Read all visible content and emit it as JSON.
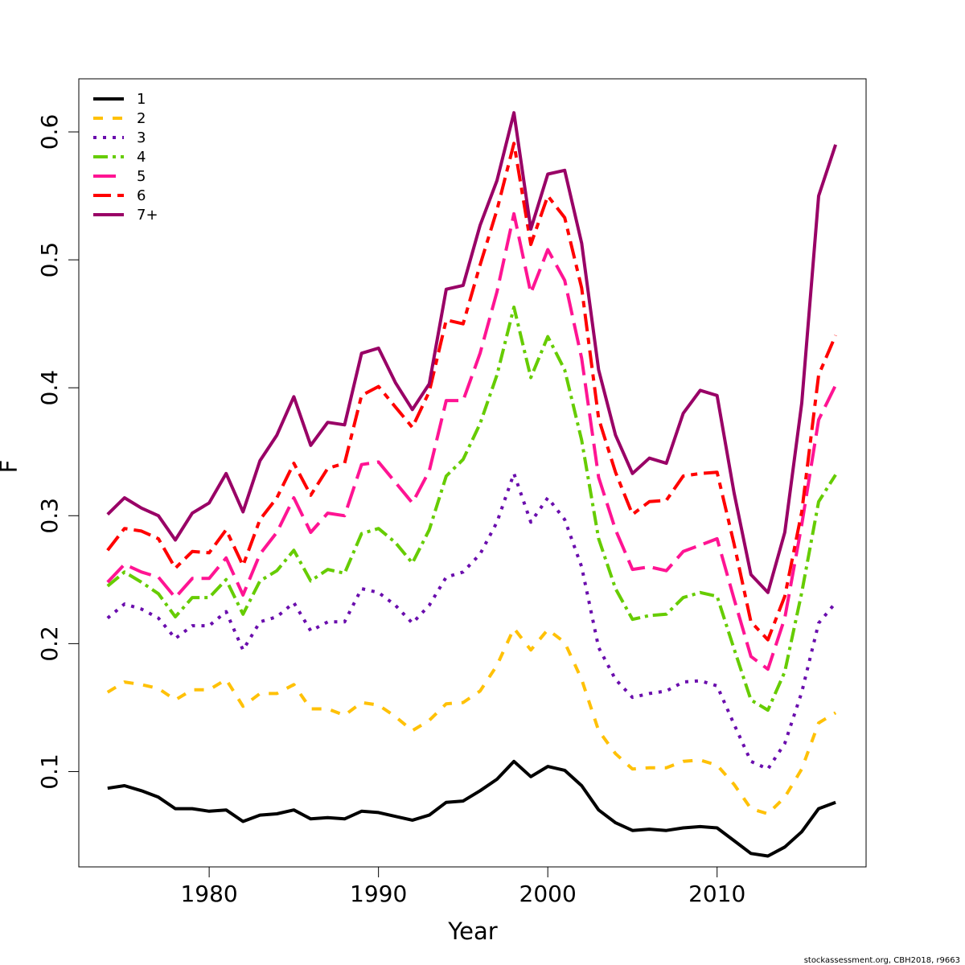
{
  "chart_data": {
    "type": "line",
    "xlabel": "Year",
    "ylabel": "F",
    "xlim": [
      1972.3,
      2018.8
    ],
    "ylim": [
      0.0255,
      0.6415
    ],
    "x_ticks": [
      1980,
      1990,
      2000,
      2010
    ],
    "y_ticks": [
      0.1,
      0.2,
      0.3,
      0.4,
      0.5,
      0.6
    ],
    "y_tick_labels": [
      "0.1",
      "0.2",
      "0.3",
      "0.4",
      "0.5",
      "0.6"
    ],
    "legend_position": "top-left",
    "x": [
      1974,
      1975,
      1976,
      1977,
      1978,
      1979,
      1980,
      1981,
      1982,
      1983,
      1984,
      1985,
      1986,
      1987,
      1988,
      1989,
      1990,
      1991,
      1992,
      1993,
      1994,
      1995,
      1996,
      1997,
      1998,
      1999,
      2000,
      2001,
      2002,
      2003,
      2004,
      2005,
      2006,
      2007,
      2008,
      2009,
      2010,
      2011,
      2012,
      2013,
      2014,
      2015,
      2016,
      2017
    ],
    "series": [
      {
        "name": "1",
        "color": "#000000",
        "dash": "",
        "values": [
          0.087,
          0.089,
          0.085,
          0.08,
          0.071,
          0.071,
          0.069,
          0.07,
          0.061,
          0.066,
          0.067,
          0.07,
          0.063,
          0.064,
          0.063,
          0.069,
          0.068,
          0.065,
          0.062,
          0.066,
          0.076,
          0.077,
          0.085,
          0.094,
          0.108,
          0.096,
          0.104,
          0.101,
          0.089,
          0.07,
          0.06,
          0.054,
          0.055,
          0.054,
          0.056,
          0.057,
          0.056,
          0.046,
          0.036,
          0.034,
          0.041,
          0.053,
          0.071,
          0.076
        ]
      },
      {
        "name": "2",
        "color": "#FFC107",
        "dash": "12 12",
        "values": [
          0.162,
          0.17,
          0.168,
          0.165,
          0.156,
          0.164,
          0.164,
          0.172,
          0.151,
          0.161,
          0.161,
          0.168,
          0.149,
          0.149,
          0.144,
          0.154,
          0.152,
          0.143,
          0.132,
          0.14,
          0.153,
          0.154,
          0.163,
          0.183,
          0.212,
          0.195,
          0.211,
          0.201,
          0.172,
          0.132,
          0.114,
          0.102,
          0.103,
          0.103,
          0.108,
          0.109,
          0.105,
          0.09,
          0.071,
          0.067,
          0.08,
          0.102,
          0.138,
          0.146
        ]
      },
      {
        "name": "3",
        "color": "#6A0DAD",
        "dash": "4 8",
        "values": [
          0.22,
          0.231,
          0.227,
          0.22,
          0.204,
          0.214,
          0.214,
          0.225,
          0.195,
          0.217,
          0.221,
          0.232,
          0.21,
          0.217,
          0.217,
          0.243,
          0.24,
          0.23,
          0.216,
          0.23,
          0.252,
          0.256,
          0.27,
          0.295,
          0.333,
          0.295,
          0.314,
          0.297,
          0.26,
          0.197,
          0.172,
          0.158,
          0.161,
          0.163,
          0.17,
          0.171,
          0.167,
          0.137,
          0.108,
          0.102,
          0.122,
          0.162,
          0.216,
          0.232
        ]
      },
      {
        "name": "4",
        "color": "#66CC00",
        "dash": "18 6 4 6",
        "values": [
          0.245,
          0.256,
          0.248,
          0.239,
          0.221,
          0.236,
          0.236,
          0.25,
          0.223,
          0.249,
          0.257,
          0.273,
          0.249,
          0.258,
          0.255,
          0.286,
          0.29,
          0.279,
          0.263,
          0.289,
          0.331,
          0.344,
          0.372,
          0.41,
          0.463,
          0.408,
          0.44,
          0.414,
          0.359,
          0.282,
          0.243,
          0.219,
          0.222,
          0.223,
          0.236,
          0.24,
          0.237,
          0.196,
          0.156,
          0.148,
          0.178,
          0.24,
          0.311,
          0.332
        ]
      },
      {
        "name": "5",
        "color": "#FF1493",
        "dash": "28 10",
        "values": [
          0.248,
          0.262,
          0.256,
          0.252,
          0.236,
          0.251,
          0.251,
          0.267,
          0.238,
          0.27,
          0.287,
          0.314,
          0.287,
          0.302,
          0.3,
          0.34,
          0.342,
          0.326,
          0.31,
          0.335,
          0.39,
          0.39,
          0.427,
          0.475,
          0.536,
          0.474,
          0.508,
          0.484,
          0.423,
          0.33,
          0.289,
          0.258,
          0.26,
          0.257,
          0.272,
          0.277,
          0.282,
          0.235,
          0.19,
          0.18,
          0.22,
          0.293,
          0.375,
          0.402
        ]
      },
      {
        "name": "6",
        "color": "#FF0000",
        "dash": "22 8 8 8",
        "values": [
          0.273,
          0.29,
          0.288,
          0.282,
          0.259,
          0.272,
          0.271,
          0.289,
          0.261,
          0.297,
          0.314,
          0.341,
          0.316,
          0.337,
          0.341,
          0.394,
          0.401,
          0.385,
          0.369,
          0.397,
          0.453,
          0.45,
          0.496,
          0.539,
          0.591,
          0.512,
          0.55,
          0.533,
          0.478,
          0.376,
          0.334,
          0.301,
          0.311,
          0.312,
          0.331,
          0.333,
          0.334,
          0.278,
          0.217,
          0.203,
          0.237,
          0.303,
          0.41,
          0.441
        ]
      },
      {
        "name": "7+",
        "color": "#990066",
        "dash": "",
        "values": [
          0.301,
          0.314,
          0.306,
          0.3,
          0.281,
          0.302,
          0.31,
          0.333,
          0.303,
          0.343,
          0.363,
          0.393,
          0.355,
          0.373,
          0.371,
          0.427,
          0.431,
          0.404,
          0.383,
          0.403,
          0.477,
          0.48,
          0.527,
          0.562,
          0.615,
          0.524,
          0.567,
          0.57,
          0.513,
          0.414,
          0.363,
          0.333,
          0.345,
          0.341,
          0.38,
          0.398,
          0.394,
          0.318,
          0.254,
          0.24,
          0.287,
          0.388,
          0.55,
          0.59
        ]
      }
    ]
  },
  "footer": {
    "text": "stockassessment.org, CBH2018, r9663"
  }
}
